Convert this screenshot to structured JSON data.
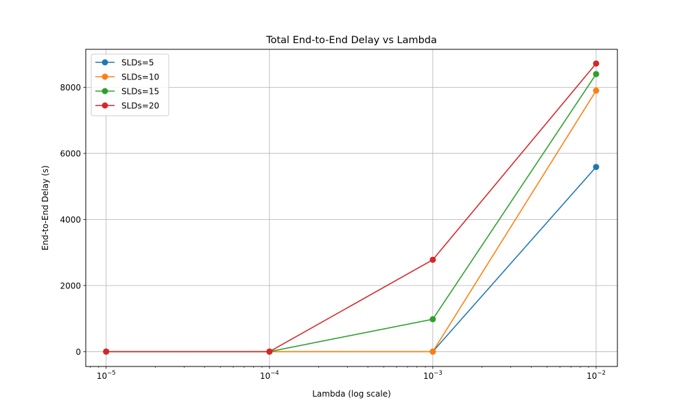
{
  "chart_data": {
    "type": "line",
    "title": "Total End-to-End Delay vs Lambda",
    "xlabel": "Lambda (log scale)",
    "ylabel": "End-to-End Delay (s)",
    "xscale": "log",
    "xlim": [
      7.5e-06,
      0.0135
    ],
    "ylim": [
      -450,
      9150
    ],
    "xticks": [
      {
        "value": 1e-05,
        "base": "10",
        "exp": "−5"
      },
      {
        "value": 0.0001,
        "base": "10",
        "exp": "−4"
      },
      {
        "value": 0.001,
        "base": "10",
        "exp": "−3"
      },
      {
        "value": 0.01,
        "base": "10",
        "exp": "−2"
      }
    ],
    "yticks": [
      0,
      2000,
      4000,
      6000,
      8000
    ],
    "grid": true,
    "legend_position": "top-left",
    "x": [
      1e-05,
      0.0001,
      0.001,
      0.01
    ],
    "series": [
      {
        "name": "SLDs=5",
        "color": "#1f77b4",
        "values": [
          0,
          0,
          0,
          5590
        ]
      },
      {
        "name": "SLDs=10",
        "color": "#ff7f0e",
        "values": [
          0,
          0,
          0,
          7900
        ]
      },
      {
        "name": "SLDs=15",
        "color": "#2ca02c",
        "values": [
          0,
          0,
          980,
          8400
        ]
      },
      {
        "name": "SLDs=20",
        "color": "#d62728",
        "values": [
          0,
          0,
          2780,
          8720
        ]
      }
    ]
  }
}
